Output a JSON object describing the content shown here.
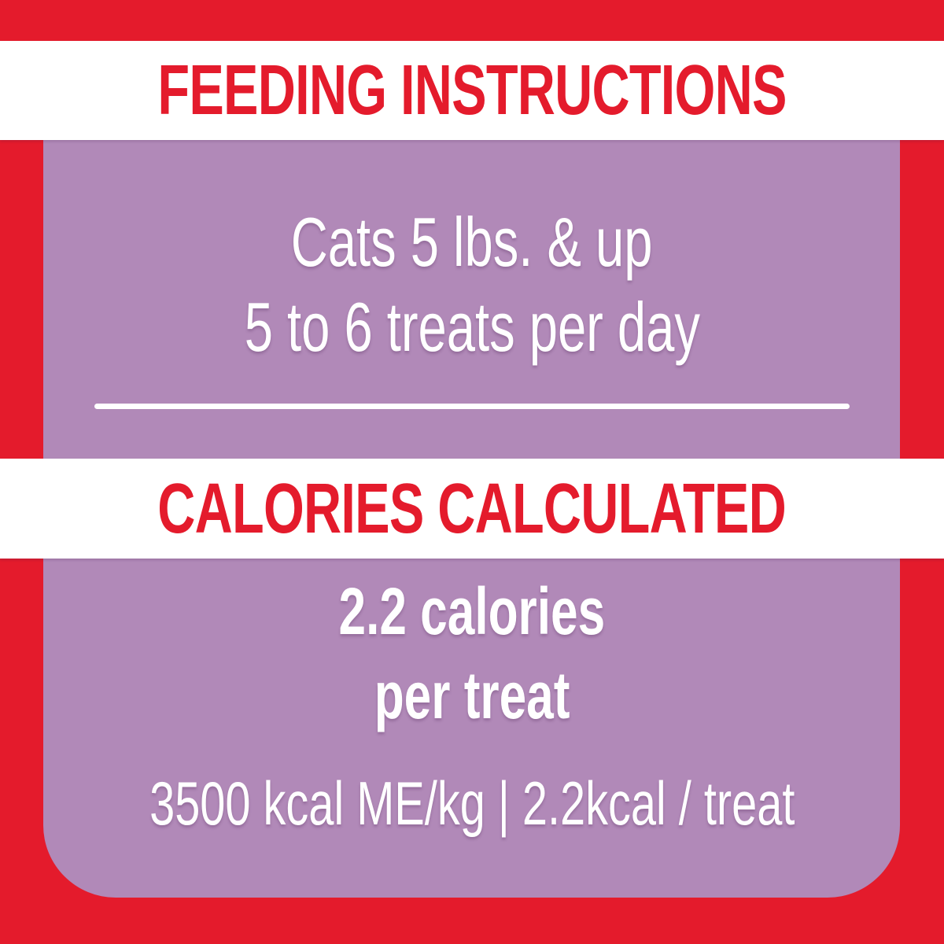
{
  "label": {
    "sections": [
      {
        "id": "feeding",
        "title": "FEEDING INSTRUCTIONS",
        "lines": [
          "Cats 5 lbs. & up",
          "5 to 6 treats per day"
        ]
      },
      {
        "id": "calories",
        "title": "CALORIES CALCULATED",
        "lines": [
          "2.2 calories",
          "per treat"
        ],
        "footnote": "3500 kcal ME/kg | 2.2kcal / treat"
      }
    ]
  },
  "colors": {
    "frame_red": "#e41b2c",
    "panel_purple": "#b189b8",
    "band_white": "#ffffff",
    "text_white": "#ffffff"
  }
}
